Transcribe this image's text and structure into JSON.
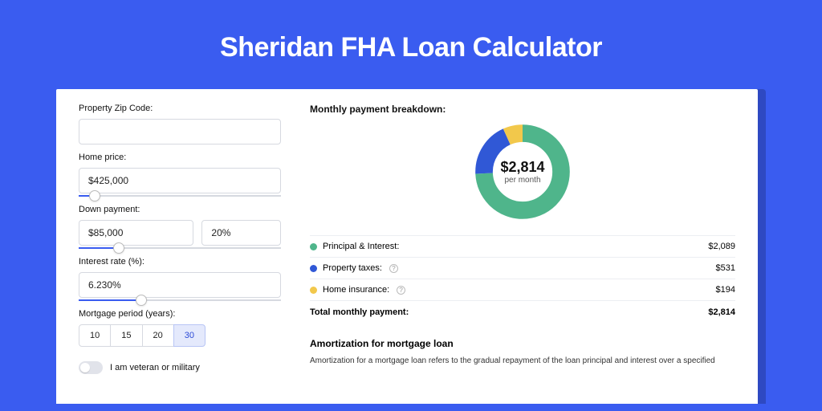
{
  "page": {
    "title": "Sheridan FHA Loan Calculator",
    "background_color": "#3a5cf0"
  },
  "form": {
    "zip": {
      "label": "Property Zip Code:",
      "value": ""
    },
    "home_price": {
      "label": "Home price:",
      "value": "$425,000",
      "slider_pct": 8
    },
    "down_payment": {
      "label": "Down payment:",
      "value": "$85,000",
      "pct_value": "20%",
      "slider_pct": 20
    },
    "interest_rate": {
      "label": "Interest rate (%):",
      "value": "6.230%",
      "slider_pct": 31
    },
    "mortgage_period": {
      "label": "Mortgage period (years):",
      "options": [
        "10",
        "15",
        "20",
        "30"
      ],
      "active_index": 3
    },
    "veteran": {
      "label": "I am veteran or military",
      "on": false
    }
  },
  "breakdown": {
    "title": "Monthly payment breakdown:",
    "donut": {
      "amount": "$2,814",
      "subtitle": "per month",
      "slices": [
        {
          "label": "Principal & Interest:",
          "value": "$2,089",
          "color": "#4fb58b",
          "pct": 74.2
        },
        {
          "label": "Property taxes:",
          "value": "$531",
          "color": "#3058d6",
          "pct": 18.9,
          "info": true
        },
        {
          "label": "Home insurance:",
          "value": "$194",
          "color": "#f2c84b",
          "pct": 6.9,
          "info": true
        }
      ]
    },
    "total": {
      "label": "Total monthly payment:",
      "value": "$2,814"
    }
  },
  "amortization": {
    "title": "Amortization for mortgage loan",
    "text": "Amortization for a mortgage loan refers to the gradual repayment of the loan principal and interest over a specified"
  }
}
